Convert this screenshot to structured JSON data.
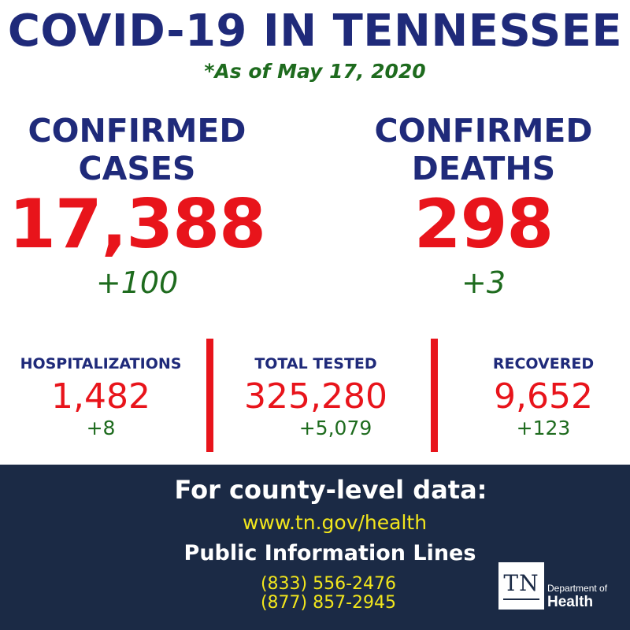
{
  "header": {
    "title": "COVID-19 IN TENNESSEE",
    "date_note": "*As of May 17, 2020"
  },
  "confirmed_cases": {
    "label_line1": "CONFIRMED",
    "label_line2": "CASES",
    "value": "17,388",
    "change": "+100"
  },
  "confirmed_deaths": {
    "label_line1": "CONFIRMED",
    "label_line2": "DEATHS",
    "value": "298",
    "change": "+3"
  },
  "stats": {
    "hospitalizations": {
      "label": "HOSPITALIZATIONS",
      "value": "1,482",
      "change": "+8"
    },
    "total_tested": {
      "label": "TOTAL TESTED",
      "value": "325,280",
      "change": "+5,079"
    },
    "recovered": {
      "label": "RECOVERED",
      "value": "9,652",
      "change": "+123"
    }
  },
  "footer": {
    "heading": "For county-level data:",
    "url": "www.tn.gov/health",
    "lines_title": "Public Information Lines",
    "phone_1": "(833) 556-2476",
    "phone_2": "(877) 857-2945"
  },
  "logo": {
    "mark": "TN",
    "department": "Department of",
    "name": "Health"
  },
  "colors": {
    "navy": "#1f2a7a",
    "red": "#e8141b",
    "green": "#1e6b1e",
    "footer_bg": "#1b2a45",
    "yellow": "#f2e61c"
  }
}
